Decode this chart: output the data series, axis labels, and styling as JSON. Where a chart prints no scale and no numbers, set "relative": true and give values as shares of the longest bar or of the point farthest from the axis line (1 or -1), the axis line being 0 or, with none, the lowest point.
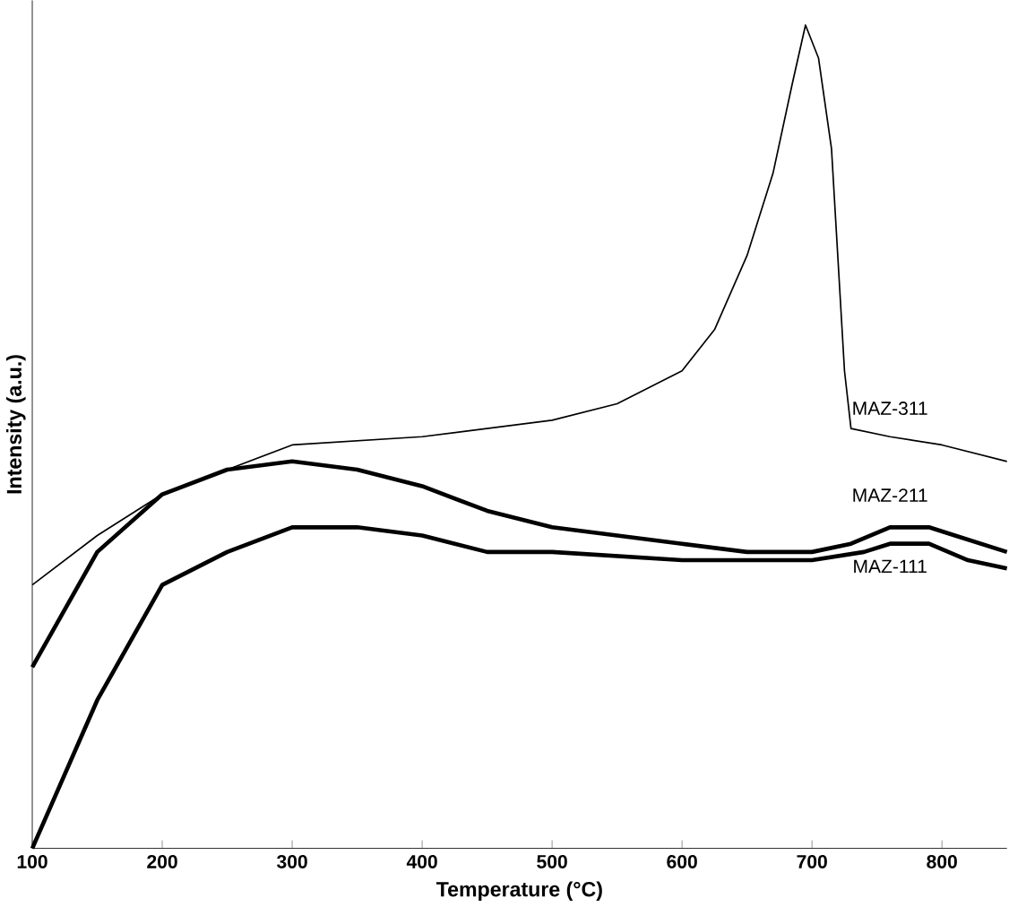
{
  "chart_data": {
    "type": "line",
    "relative": true,
    "xlabel": "Temperature (°C)",
    "ylabel": "Intensity (a.u.)",
    "xlim": [
      100,
      850
    ],
    "xticks": [
      100,
      200,
      300,
      400,
      500,
      600,
      700,
      800
    ],
    "series": [
      {
        "name": "MAZ-311",
        "color": "#000000",
        "x": [
          100,
          150,
          200,
          250,
          300,
          400,
          500,
          550,
          600,
          625,
          650,
          670,
          685,
          695,
          705,
          715,
          725,
          730,
          760,
          800,
          850
        ],
        "values": [
          0.32,
          0.38,
          0.43,
          0.46,
          0.49,
          0.5,
          0.52,
          0.54,
          0.58,
          0.63,
          0.72,
          0.82,
          0.93,
          1.0,
          0.96,
          0.85,
          0.58,
          0.51,
          0.5,
          0.49,
          0.47
        ]
      },
      {
        "name": "MAZ-211",
        "color": "#000000",
        "x": [
          100,
          150,
          200,
          250,
          300,
          350,
          400,
          450,
          500,
          550,
          600,
          650,
          700,
          730,
          760,
          790,
          810,
          850
        ],
        "values": [
          0.22,
          0.36,
          0.43,
          0.46,
          0.47,
          0.46,
          0.44,
          0.41,
          0.39,
          0.38,
          0.37,
          0.36,
          0.36,
          0.37,
          0.39,
          0.39,
          0.38,
          0.36
        ]
      },
      {
        "name": "MAZ-111",
        "color": "#000000",
        "x": [
          100,
          150,
          200,
          250,
          300,
          350,
          400,
          450,
          500,
          600,
          700,
          740,
          760,
          790,
          820,
          850
        ],
        "values": [
          0,
          0.18,
          0.32,
          0.36,
          0.39,
          0.39,
          0.38,
          0.36,
          0.36,
          0.35,
          0.35,
          0.36,
          0.37,
          0.37,
          0.35,
          0.34
        ]
      }
    ]
  }
}
